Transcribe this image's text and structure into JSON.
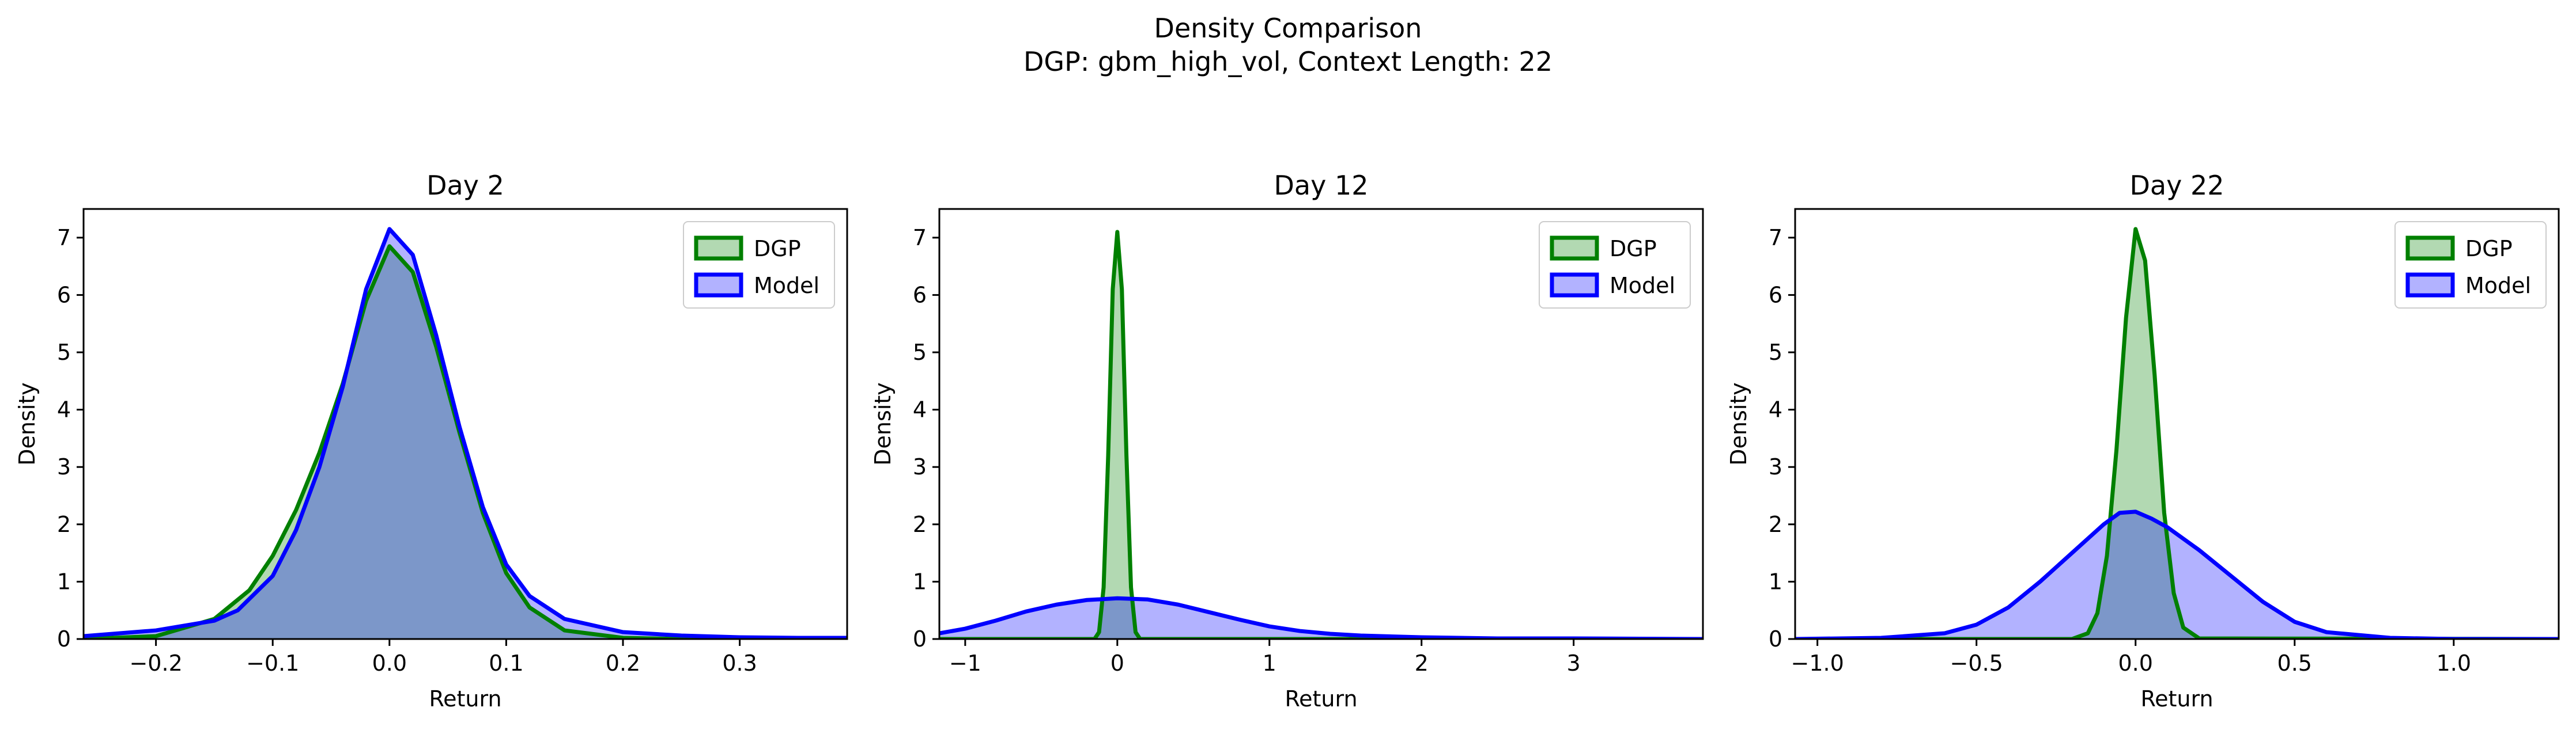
{
  "figure": {
    "title_line1": "Density Comparison",
    "title_line2": "DGP: gbm_high_vol, Context Length: 22"
  },
  "colors": {
    "dgp_line": "#008000",
    "dgp_fill": "#008000",
    "model_line": "#0000ff",
    "model_fill": "#0000ff"
  },
  "chart_data": [
    {
      "type": "area",
      "title": "Day 2",
      "xlabel": "Return",
      "ylabel": "Density",
      "xlim": [
        -0.262,
        0.392
      ],
      "ylim": [
        0,
        7.5
      ],
      "xticks": [
        -0.2,
        -0.1,
        0.0,
        0.1,
        0.2,
        0.3
      ],
      "xtick_labels": [
        "−0.2",
        "−0.1",
        "0.0",
        "0.1",
        "0.2",
        "0.3"
      ],
      "yticks": [
        0,
        1,
        2,
        3,
        4,
        5,
        6,
        7
      ],
      "ytick_labels": [
        "0",
        "1",
        "2",
        "3",
        "4",
        "5",
        "6",
        "7"
      ],
      "legend_position": "top-right",
      "legend": [
        "DGP",
        "Model"
      ],
      "series": [
        {
          "name": "DGP",
          "x": [
            -0.262,
            -0.2,
            -0.15,
            -0.12,
            -0.1,
            -0.08,
            -0.06,
            -0.04,
            -0.02,
            0.0,
            0.02,
            0.04,
            0.06,
            0.08,
            0.1,
            0.12,
            0.15,
            0.2,
            0.25,
            0.3,
            0.392
          ],
          "y": [
            0.0,
            0.05,
            0.35,
            0.85,
            1.45,
            2.25,
            3.25,
            4.45,
            5.9,
            6.85,
            6.4,
            5.1,
            3.6,
            2.2,
            1.15,
            0.55,
            0.15,
            0.02,
            0.0,
            0.0,
            0.0
          ]
        },
        {
          "name": "Model",
          "x": [
            -0.262,
            -0.2,
            -0.15,
            -0.13,
            -0.1,
            -0.08,
            -0.06,
            -0.04,
            -0.02,
            0.0,
            0.02,
            0.04,
            0.06,
            0.08,
            0.1,
            0.12,
            0.15,
            0.2,
            0.25,
            0.3,
            0.35,
            0.392
          ],
          "y": [
            0.05,
            0.15,
            0.32,
            0.5,
            1.1,
            1.9,
            3.0,
            4.4,
            6.1,
            7.15,
            6.7,
            5.3,
            3.7,
            2.3,
            1.3,
            0.75,
            0.35,
            0.12,
            0.06,
            0.03,
            0.02,
            0.02
          ]
        }
      ]
    },
    {
      "type": "area",
      "title": "Day 12",
      "xlabel": "Return",
      "ylabel": "Density",
      "xlim": [
        -1.17,
        3.85
      ],
      "ylim": [
        0,
        7.5
      ],
      "xticks": [
        -1,
        0,
        1,
        2,
        3
      ],
      "xtick_labels": [
        "−1",
        "0",
        "1",
        "2",
        "3"
      ],
      "yticks": [
        0,
        1,
        2,
        3,
        4,
        5,
        6,
        7
      ],
      "ytick_labels": [
        "0",
        "1",
        "2",
        "3",
        "4",
        "5",
        "6",
        "7"
      ],
      "legend_position": "top-right",
      "legend": [
        "DGP",
        "Model"
      ],
      "series": [
        {
          "name": "DGP",
          "x": [
            -1.17,
            -0.15,
            -0.12,
            -0.09,
            -0.06,
            -0.03,
            0.0,
            0.03,
            0.06,
            0.09,
            0.12,
            0.15,
            3.85
          ],
          "y": [
            0.0,
            0.0,
            0.12,
            0.9,
            3.2,
            6.1,
            7.1,
            6.1,
            3.2,
            0.9,
            0.12,
            0.0,
            0.0
          ]
        },
        {
          "name": "Model",
          "x": [
            -1.17,
            -1.0,
            -0.8,
            -0.6,
            -0.4,
            -0.2,
            0.0,
            0.2,
            0.4,
            0.6,
            0.8,
            1.0,
            1.2,
            1.4,
            1.6,
            2.0,
            2.5,
            3.0,
            3.85
          ],
          "y": [
            0.1,
            0.18,
            0.32,
            0.48,
            0.6,
            0.68,
            0.71,
            0.69,
            0.6,
            0.47,
            0.34,
            0.22,
            0.14,
            0.09,
            0.06,
            0.03,
            0.01,
            0.01,
            0.0
          ]
        }
      ]
    },
    {
      "type": "area",
      "title": "Day 22",
      "xlabel": "Return",
      "ylabel": "Density",
      "xlim": [
        -1.07,
        1.33
      ],
      "ylim": [
        0,
        7.5
      ],
      "xticks": [
        -1.0,
        -0.5,
        0.0,
        0.5,
        1.0
      ],
      "xtick_labels": [
        "−1.0",
        "−0.5",
        "0.0",
        "0.5",
        "1.0"
      ],
      "yticks": [
        0,
        1,
        2,
        3,
        4,
        5,
        6,
        7
      ],
      "ytick_labels": [
        "0",
        "1",
        "2",
        "3",
        "4",
        "5",
        "6",
        "7"
      ],
      "legend_position": "top-right",
      "legend": [
        "DGP",
        "Model"
      ],
      "series": [
        {
          "name": "DGP",
          "x": [
            -1.07,
            -0.2,
            -0.15,
            -0.12,
            -0.09,
            -0.06,
            -0.03,
            0.0,
            0.03,
            0.06,
            0.09,
            0.12,
            0.15,
            0.2,
            1.33
          ],
          "y": [
            0.0,
            0.0,
            0.1,
            0.45,
            1.45,
            3.3,
            5.6,
            7.15,
            6.6,
            4.6,
            2.2,
            0.8,
            0.2,
            0.01,
            0.0
          ]
        },
        {
          "name": "Model",
          "x": [
            -1.07,
            -0.8,
            -0.6,
            -0.5,
            -0.4,
            -0.3,
            -0.2,
            -0.1,
            -0.05,
            0.0,
            0.05,
            0.1,
            0.2,
            0.3,
            0.4,
            0.5,
            0.6,
            0.8,
            1.0,
            1.33
          ],
          "y": [
            0.0,
            0.02,
            0.1,
            0.25,
            0.55,
            1.0,
            1.5,
            2.0,
            2.2,
            2.22,
            2.1,
            1.95,
            1.55,
            1.1,
            0.65,
            0.3,
            0.12,
            0.02,
            0.0,
            0.0
          ]
        }
      ]
    }
  ]
}
